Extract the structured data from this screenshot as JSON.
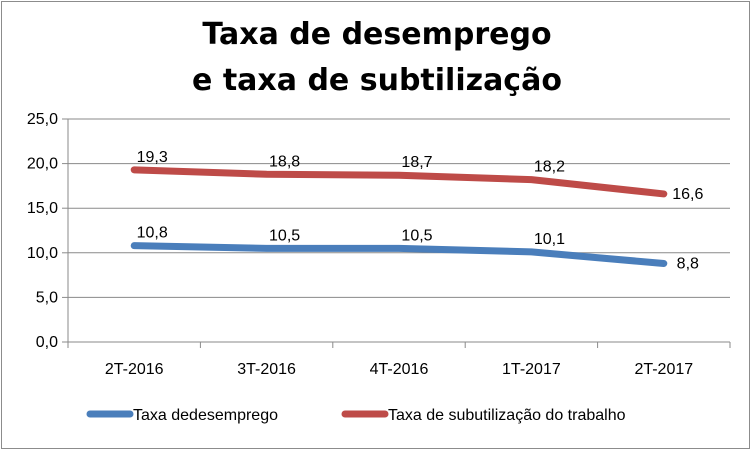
{
  "chart_data": {
    "type": "line",
    "title_lines": [
      "Taxa de desemprego",
      "e taxa de subtilização"
    ],
    "categories": [
      "2T-2016",
      "3T-2016",
      "4T-2016",
      "1T-2017",
      "2T-2017"
    ],
    "y_ticks": [
      "0,0",
      "5,0",
      "10,0",
      "15,0",
      "20,0",
      "25,0"
    ],
    "ylim": [
      0,
      25
    ],
    "grid": "horizontal",
    "legend_position": "bottom",
    "series": [
      {
        "name": "Taxa dedesemprego",
        "color": "#4a7ebb",
        "values": [
          10.8,
          10.5,
          10.5,
          10.1,
          8.8
        ],
        "labels": [
          "10,8",
          "10,5",
          "10,5",
          "10,1",
          "8,8"
        ]
      },
      {
        "name": "Taxa de subutilização do trabalho",
        "color": "#be4b48",
        "values": [
          19.3,
          18.8,
          18.7,
          18.2,
          16.6
        ],
        "labels": [
          "19,3",
          "18,8",
          "18,7",
          "18,2",
          "16,6"
        ]
      }
    ]
  }
}
